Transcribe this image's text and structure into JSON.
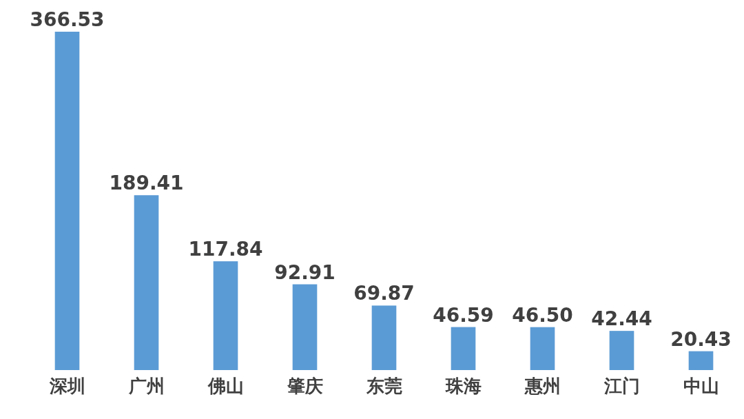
{
  "chart_data": {
    "type": "bar",
    "categories": [
      "深圳",
      "广州",
      "佛山",
      "肇庆",
      "东莞",
      "珠海",
      "惠州",
      "江门",
      "中山"
    ],
    "values": [
      366.53,
      189.41,
      117.84,
      92.91,
      69.87,
      46.59,
      46.5,
      42.44,
      20.43
    ],
    "value_labels": [
      "366.53",
      "189.41",
      "117.84",
      "92.91",
      "69.87",
      "46.59",
      "46.50",
      "42.44",
      "20.43"
    ],
    "color": "#5b9bd5"
  }
}
